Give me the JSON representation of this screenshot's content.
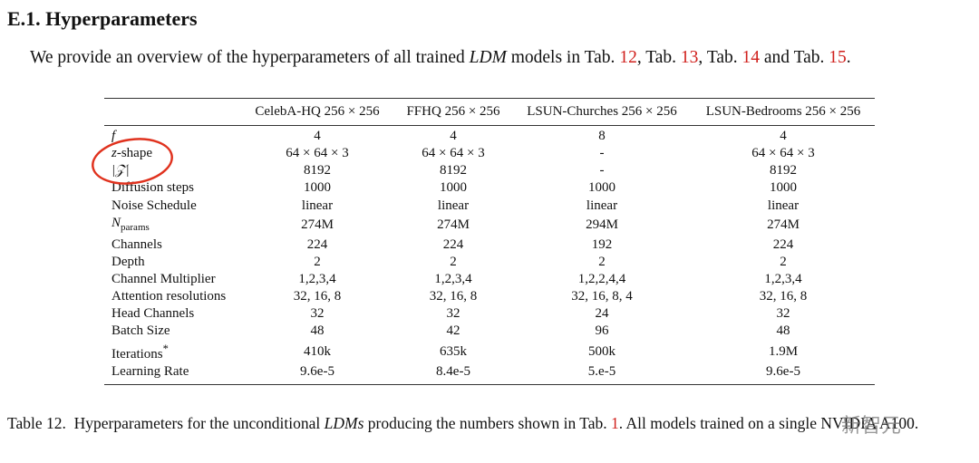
{
  "section": {
    "title": "E.1. Hyperparameters"
  },
  "intro": [
    "We provide an overview of the hyperparameters of all trained ",
    "LDM",
    " models in Tab. ",
    "12",
    ", Tab. ",
    "13",
    ", Tab. ",
    "14",
    " and Tab. ",
    "15",
    "."
  ],
  "table": {
    "columns": [
      "CelebA-HQ 256 × 256",
      "FFHQ 256 × 256",
      "LSUN-Churches 256 × 256",
      "LSUN-Bedrooms 256 × 256"
    ],
    "rows": [
      {
        "label": "f",
        "values": [
          "4",
          "4",
          "8",
          "4"
        ]
      },
      {
        "label": [
          "z",
          "-shape"
        ],
        "values": [
          "64 × 64 × 3",
          "64 × 64 × 3",
          "-",
          "64 × 64 × 3"
        ]
      },
      {
        "label": "|𝒵|",
        "values": [
          "8192",
          "8192",
          "-",
          "8192"
        ]
      },
      {
        "label": "Diffusion steps",
        "values": [
          "1000",
          "1000",
          "1000",
          "1000"
        ]
      },
      {
        "label": "Noise Schedule",
        "values": [
          "linear",
          "linear",
          "linear",
          "linear"
        ]
      },
      {
        "label": [
          "N",
          "params"
        ],
        "values": [
          "274M",
          "274M",
          "294M",
          "274M"
        ]
      },
      {
        "label": "Channels",
        "values": [
          "224",
          "224",
          "192",
          "224"
        ]
      },
      {
        "label": "Depth",
        "values": [
          "2",
          "2",
          "2",
          "2"
        ]
      },
      {
        "label": "Channel Multiplier",
        "values": [
          "1,2,3,4",
          "1,2,3,4",
          "1,2,2,4,4",
          "1,2,3,4"
        ]
      },
      {
        "label": "Attention resolutions",
        "values": [
          "32, 16, 8",
          "32, 16, 8",
          "32, 16, 8, 4",
          "32, 16, 8"
        ]
      },
      {
        "label": "Head Channels",
        "values": [
          "32",
          "32",
          "24",
          "32"
        ]
      },
      {
        "label": "Batch Size",
        "values": [
          "48",
          "42",
          "96",
          "48"
        ]
      },
      {
        "label": [
          "Iterations",
          "*"
        ],
        "values": [
          "410k",
          "635k",
          "500k",
          "1.9M"
        ]
      },
      {
        "label": "Learning Rate",
        "values": [
          "9.6e-5",
          "8.4e-5",
          "5.e-5",
          "9.6e-5"
        ]
      }
    ]
  },
  "caption": [
    "Table 12.",
    "Hyperparameters for the unconditional ",
    "LDMs",
    " producing the numbers shown in Tab. ",
    "1",
    ". All models trained on a single NVIDIA A100."
  ],
  "watermark": "新智元"
}
